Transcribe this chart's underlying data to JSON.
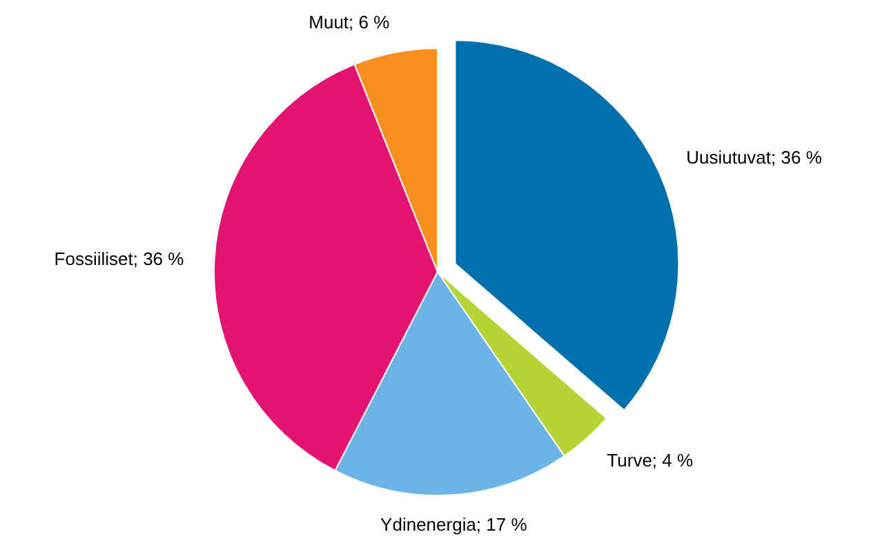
{
  "chart_data": {
    "type": "pie",
    "categories": [
      "Uusiutuvat",
      "Turve",
      "Ydinenergia",
      "Fossiiliset",
      "Muut"
    ],
    "values": [
      36,
      4,
      17,
      36,
      6
    ],
    "value_labels": [
      "36 %",
      "4 %",
      "17 %",
      "36 %",
      "6 %"
    ],
    "colors": [
      "#0070ad",
      "#b5d334",
      "#6cb4e6",
      "#e3136f",
      "#f7901e"
    ]
  }
}
